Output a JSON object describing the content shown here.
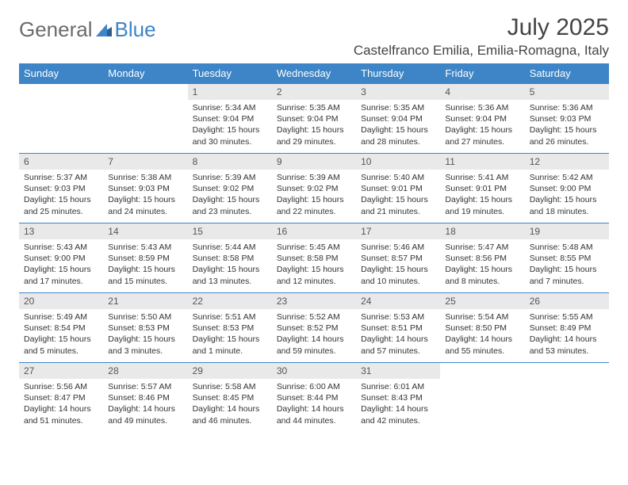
{
  "logo": {
    "word1": "General",
    "word2": "Blue"
  },
  "title": "July 2025",
  "location": "Castelfranco Emilia, Emilia-Romagna, Italy",
  "colors": {
    "header_bg": "#3d85c6",
    "header_text": "#ffffff",
    "daynum_bg": "#e9e9e9",
    "daynum_text": "#555555",
    "body_text": "#333333",
    "rule": "#3d85c6",
    "logo_gray": "#6b6b6b",
    "logo_blue": "#3d85c6"
  },
  "day_headers": [
    "Sunday",
    "Monday",
    "Tuesday",
    "Wednesday",
    "Thursday",
    "Friday",
    "Saturday"
  ],
  "weeks": [
    [
      null,
      null,
      {
        "n": "1",
        "sr": "Sunrise: 5:34 AM",
        "ss": "Sunset: 9:04 PM",
        "dl1": "Daylight: 15 hours",
        "dl2": "and 30 minutes."
      },
      {
        "n": "2",
        "sr": "Sunrise: 5:35 AM",
        "ss": "Sunset: 9:04 PM",
        "dl1": "Daylight: 15 hours",
        "dl2": "and 29 minutes."
      },
      {
        "n": "3",
        "sr": "Sunrise: 5:35 AM",
        "ss": "Sunset: 9:04 PM",
        "dl1": "Daylight: 15 hours",
        "dl2": "and 28 minutes."
      },
      {
        "n": "4",
        "sr": "Sunrise: 5:36 AM",
        "ss": "Sunset: 9:04 PM",
        "dl1": "Daylight: 15 hours",
        "dl2": "and 27 minutes."
      },
      {
        "n": "5",
        "sr": "Sunrise: 5:36 AM",
        "ss": "Sunset: 9:03 PM",
        "dl1": "Daylight: 15 hours",
        "dl2": "and 26 minutes."
      }
    ],
    [
      {
        "n": "6",
        "sr": "Sunrise: 5:37 AM",
        "ss": "Sunset: 9:03 PM",
        "dl1": "Daylight: 15 hours",
        "dl2": "and 25 minutes."
      },
      {
        "n": "7",
        "sr": "Sunrise: 5:38 AM",
        "ss": "Sunset: 9:03 PM",
        "dl1": "Daylight: 15 hours",
        "dl2": "and 24 minutes."
      },
      {
        "n": "8",
        "sr": "Sunrise: 5:39 AM",
        "ss": "Sunset: 9:02 PM",
        "dl1": "Daylight: 15 hours",
        "dl2": "and 23 minutes."
      },
      {
        "n": "9",
        "sr": "Sunrise: 5:39 AM",
        "ss": "Sunset: 9:02 PM",
        "dl1": "Daylight: 15 hours",
        "dl2": "and 22 minutes."
      },
      {
        "n": "10",
        "sr": "Sunrise: 5:40 AM",
        "ss": "Sunset: 9:01 PM",
        "dl1": "Daylight: 15 hours",
        "dl2": "and 21 minutes."
      },
      {
        "n": "11",
        "sr": "Sunrise: 5:41 AM",
        "ss": "Sunset: 9:01 PM",
        "dl1": "Daylight: 15 hours",
        "dl2": "and 19 minutes."
      },
      {
        "n": "12",
        "sr": "Sunrise: 5:42 AM",
        "ss": "Sunset: 9:00 PM",
        "dl1": "Daylight: 15 hours",
        "dl2": "and 18 minutes."
      }
    ],
    [
      {
        "n": "13",
        "sr": "Sunrise: 5:43 AM",
        "ss": "Sunset: 9:00 PM",
        "dl1": "Daylight: 15 hours",
        "dl2": "and 17 minutes."
      },
      {
        "n": "14",
        "sr": "Sunrise: 5:43 AM",
        "ss": "Sunset: 8:59 PM",
        "dl1": "Daylight: 15 hours",
        "dl2": "and 15 minutes."
      },
      {
        "n": "15",
        "sr": "Sunrise: 5:44 AM",
        "ss": "Sunset: 8:58 PM",
        "dl1": "Daylight: 15 hours",
        "dl2": "and 13 minutes."
      },
      {
        "n": "16",
        "sr": "Sunrise: 5:45 AM",
        "ss": "Sunset: 8:58 PM",
        "dl1": "Daylight: 15 hours",
        "dl2": "and 12 minutes."
      },
      {
        "n": "17",
        "sr": "Sunrise: 5:46 AM",
        "ss": "Sunset: 8:57 PM",
        "dl1": "Daylight: 15 hours",
        "dl2": "and 10 minutes."
      },
      {
        "n": "18",
        "sr": "Sunrise: 5:47 AM",
        "ss": "Sunset: 8:56 PM",
        "dl1": "Daylight: 15 hours",
        "dl2": "and 8 minutes."
      },
      {
        "n": "19",
        "sr": "Sunrise: 5:48 AM",
        "ss": "Sunset: 8:55 PM",
        "dl1": "Daylight: 15 hours",
        "dl2": "and 7 minutes."
      }
    ],
    [
      {
        "n": "20",
        "sr": "Sunrise: 5:49 AM",
        "ss": "Sunset: 8:54 PM",
        "dl1": "Daylight: 15 hours",
        "dl2": "and 5 minutes."
      },
      {
        "n": "21",
        "sr": "Sunrise: 5:50 AM",
        "ss": "Sunset: 8:53 PM",
        "dl1": "Daylight: 15 hours",
        "dl2": "and 3 minutes."
      },
      {
        "n": "22",
        "sr": "Sunrise: 5:51 AM",
        "ss": "Sunset: 8:53 PM",
        "dl1": "Daylight: 15 hours",
        "dl2": "and 1 minute."
      },
      {
        "n": "23",
        "sr": "Sunrise: 5:52 AM",
        "ss": "Sunset: 8:52 PM",
        "dl1": "Daylight: 14 hours",
        "dl2": "and 59 minutes."
      },
      {
        "n": "24",
        "sr": "Sunrise: 5:53 AM",
        "ss": "Sunset: 8:51 PM",
        "dl1": "Daylight: 14 hours",
        "dl2": "and 57 minutes."
      },
      {
        "n": "25",
        "sr": "Sunrise: 5:54 AM",
        "ss": "Sunset: 8:50 PM",
        "dl1": "Daylight: 14 hours",
        "dl2": "and 55 minutes."
      },
      {
        "n": "26",
        "sr": "Sunrise: 5:55 AM",
        "ss": "Sunset: 8:49 PM",
        "dl1": "Daylight: 14 hours",
        "dl2": "and 53 minutes."
      }
    ],
    [
      {
        "n": "27",
        "sr": "Sunrise: 5:56 AM",
        "ss": "Sunset: 8:47 PM",
        "dl1": "Daylight: 14 hours",
        "dl2": "and 51 minutes."
      },
      {
        "n": "28",
        "sr": "Sunrise: 5:57 AM",
        "ss": "Sunset: 8:46 PM",
        "dl1": "Daylight: 14 hours",
        "dl2": "and 49 minutes."
      },
      {
        "n": "29",
        "sr": "Sunrise: 5:58 AM",
        "ss": "Sunset: 8:45 PM",
        "dl1": "Daylight: 14 hours",
        "dl2": "and 46 minutes."
      },
      {
        "n": "30",
        "sr": "Sunrise: 6:00 AM",
        "ss": "Sunset: 8:44 PM",
        "dl1": "Daylight: 14 hours",
        "dl2": "and 44 minutes."
      },
      {
        "n": "31",
        "sr": "Sunrise: 6:01 AM",
        "ss": "Sunset: 8:43 PM",
        "dl1": "Daylight: 14 hours",
        "dl2": "and 42 minutes."
      },
      null,
      null
    ]
  ]
}
